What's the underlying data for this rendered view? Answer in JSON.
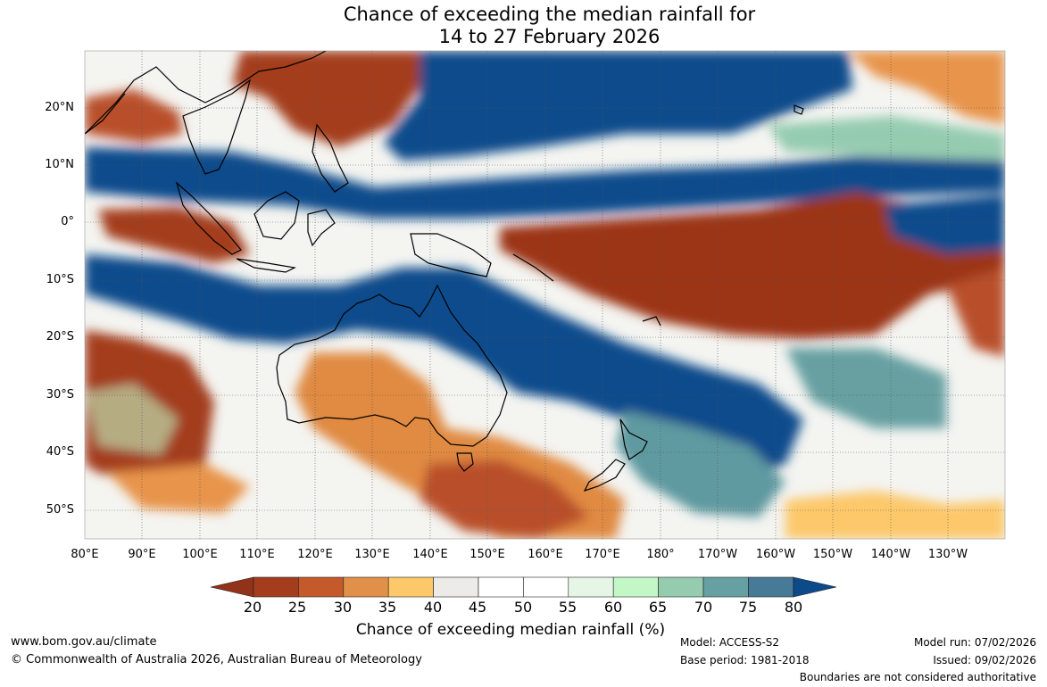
{
  "title": {
    "line1": "Chance of exceeding the median rainfall for",
    "line2": "14 to 27 February 2026"
  },
  "map": {
    "lat_labels": [
      "20°N",
      "10°N",
      "0°",
      "10°S",
      "20°S",
      "30°S",
      "40°S",
      "50°S"
    ],
    "lon_labels": [
      "80°E",
      "90°E",
      "100°E",
      "110°E",
      "120°E",
      "130°E",
      "140°E",
      "150°E",
      "160°E",
      "170°E",
      "180°",
      "170°W",
      "160°W",
      "150°W",
      "140°W",
      "130°W"
    ]
  },
  "colorbar": {
    "ticks": [
      "20",
      "25",
      "30",
      "35",
      "40",
      "45",
      "50",
      "55",
      "60",
      "65",
      "70",
      "75",
      "80"
    ],
    "colors": [
      "#a43d1d",
      "#c45a2b",
      "#e09048",
      "#fdc86a",
      "#ecebe7",
      "#ffffff",
      "#ffffff",
      "#e6f5e6",
      "#c3f7c6",
      "#95ccb0",
      "#67a0a2",
      "#467a96",
      "#0c4a8a"
    ],
    "low_color": "#923218",
    "high_color": "#0c4a8a",
    "label": "Chance of exceeding median rainfall (%)"
  },
  "footer": {
    "website": "www.bom.gov.au/climate",
    "copyright": "© Commonwealth of Australia 2026, Australian Bureau of Meteorology",
    "model": "Model: ACCESS-S2",
    "base_period": "Base period: 1981-2018",
    "model_run": "Model run: 07/02/2026",
    "issued": "Issued: 09/02/2026",
    "disclaimer": "Boundaries are not considered authoritative"
  }
}
